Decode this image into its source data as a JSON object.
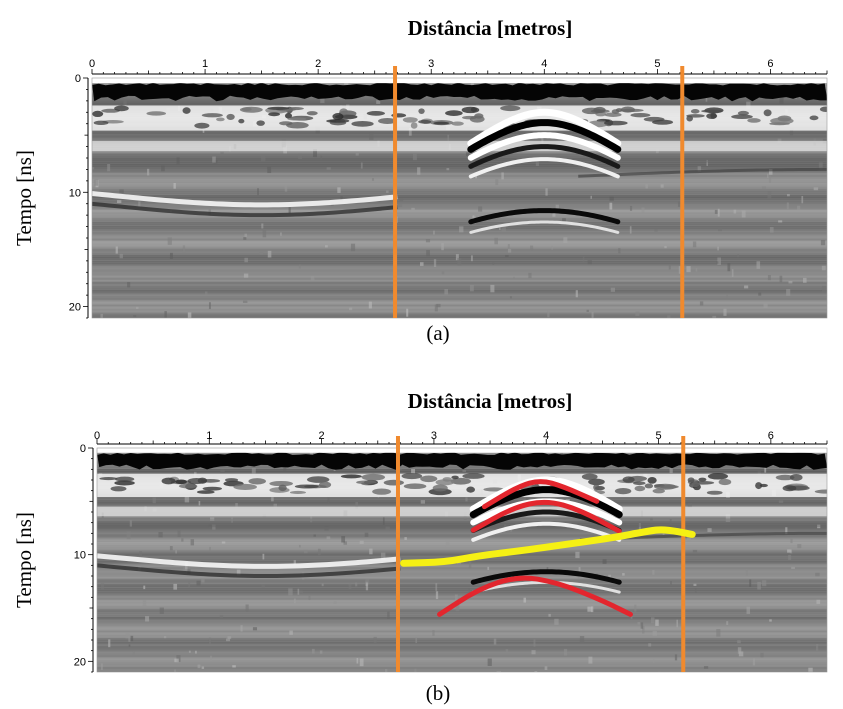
{
  "colors": {
    "marker_lines": "#f08a2e",
    "hyperbola": "#e3262e",
    "reflector": "#f5f014",
    "ground_band": "#000000"
  },
  "chart_data": [
    {
      "type": "heatmap",
      "title": "Distância [metros]",
      "xlabel": "Distância [metros]",
      "ylabel": "Tempo [ns]",
      "caption": "(a)",
      "x_ticks": [
        "0",
        "1",
        "2",
        "3",
        "4",
        "5",
        "6"
      ],
      "y_ticks": [
        "0",
        "10",
        "20"
      ],
      "xlim": [
        0,
        6.5
      ],
      "ylim": [
        0,
        21
      ],
      "grid": false,
      "marker_lines_x": [
        2.68,
        5.22
      ],
      "hyperbola_apex": [
        {
          "x": 4.0,
          "t": 3.0
        }
      ],
      "overlays": []
    },
    {
      "type": "heatmap",
      "title": "Distância [metros]",
      "xlabel": "Distância [metros]",
      "ylabel": "Tempo [ns]",
      "caption": "(b)",
      "x_ticks": [
        "0",
        "1",
        "2",
        "3",
        "4",
        "5",
        "6"
      ],
      "y_ticks": [
        "0",
        "10",
        "20"
      ],
      "xlim": [
        0,
        6.5
      ],
      "ylim": [
        0,
        21
      ],
      "grid": false,
      "marker_lines_x": [
        2.68,
        5.22
      ],
      "hyperbola_apex": [
        {
          "x": 4.0,
          "t": 3.0
        }
      ],
      "overlays": [
        {
          "kind": "hyperbola",
          "color": "red",
          "points": [
            [
              3.45,
              5.5
            ],
            [
              3.75,
              3.6
            ],
            [
              3.95,
              3.0
            ],
            [
              4.15,
              3.6
            ],
            [
              4.45,
              5.0
            ]
          ]
        },
        {
          "kind": "hyperbola",
          "color": "red",
          "points": [
            [
              3.35,
              7.7
            ],
            [
              3.7,
              5.6
            ],
            [
              4.0,
              4.9
            ],
            [
              4.3,
              5.8
            ],
            [
              4.65,
              7.8
            ]
          ]
        },
        {
          "kind": "hyperbola",
          "color": "red",
          "points": [
            [
              3.05,
              15.6
            ],
            [
              3.4,
              13.2
            ],
            [
              3.75,
              12.0
            ],
            [
              4.1,
              12.6
            ],
            [
              4.5,
              14.3
            ],
            [
              4.75,
              15.6
            ]
          ]
        },
        {
          "kind": "reflector",
          "color": "yellow",
          "points": [
            [
              2.73,
              10.8
            ],
            [
              3.1,
              10.7
            ],
            [
              3.4,
              10.1
            ],
            [
              3.8,
              9.6
            ],
            [
              4.2,
              9.0
            ],
            [
              4.6,
              8.4
            ],
            [
              4.9,
              7.8
            ],
            [
              5.05,
              7.6
            ],
            [
              5.3,
              8.1
            ]
          ]
        }
      ]
    }
  ]
}
